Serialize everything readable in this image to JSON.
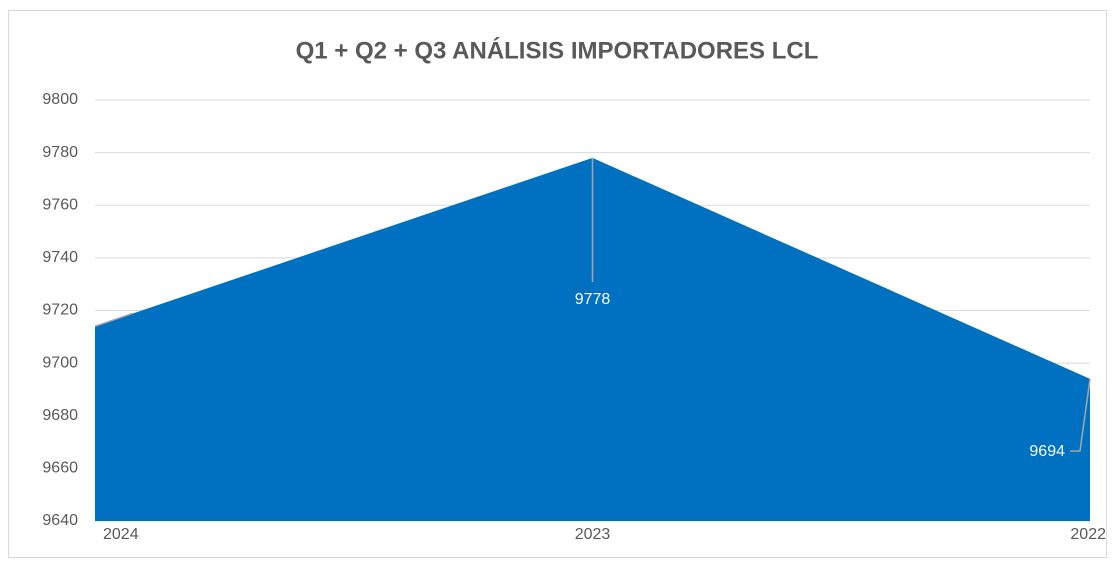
{
  "chart_data": {
    "type": "area",
    "title": "Q1 + Q2 + Q3 ANÁLISIS IMPORTADORES LCL",
    "categories": [
      "2024",
      "2023",
      "2022"
    ],
    "values": [
      9714,
      9778,
      9694
    ],
    "color": "#0070c0",
    "ylim": [
      9640,
      9800
    ],
    "yticks": [
      9640,
      9660,
      9680,
      9700,
      9720,
      9740,
      9760,
      9780,
      9800
    ],
    "grid": true
  }
}
